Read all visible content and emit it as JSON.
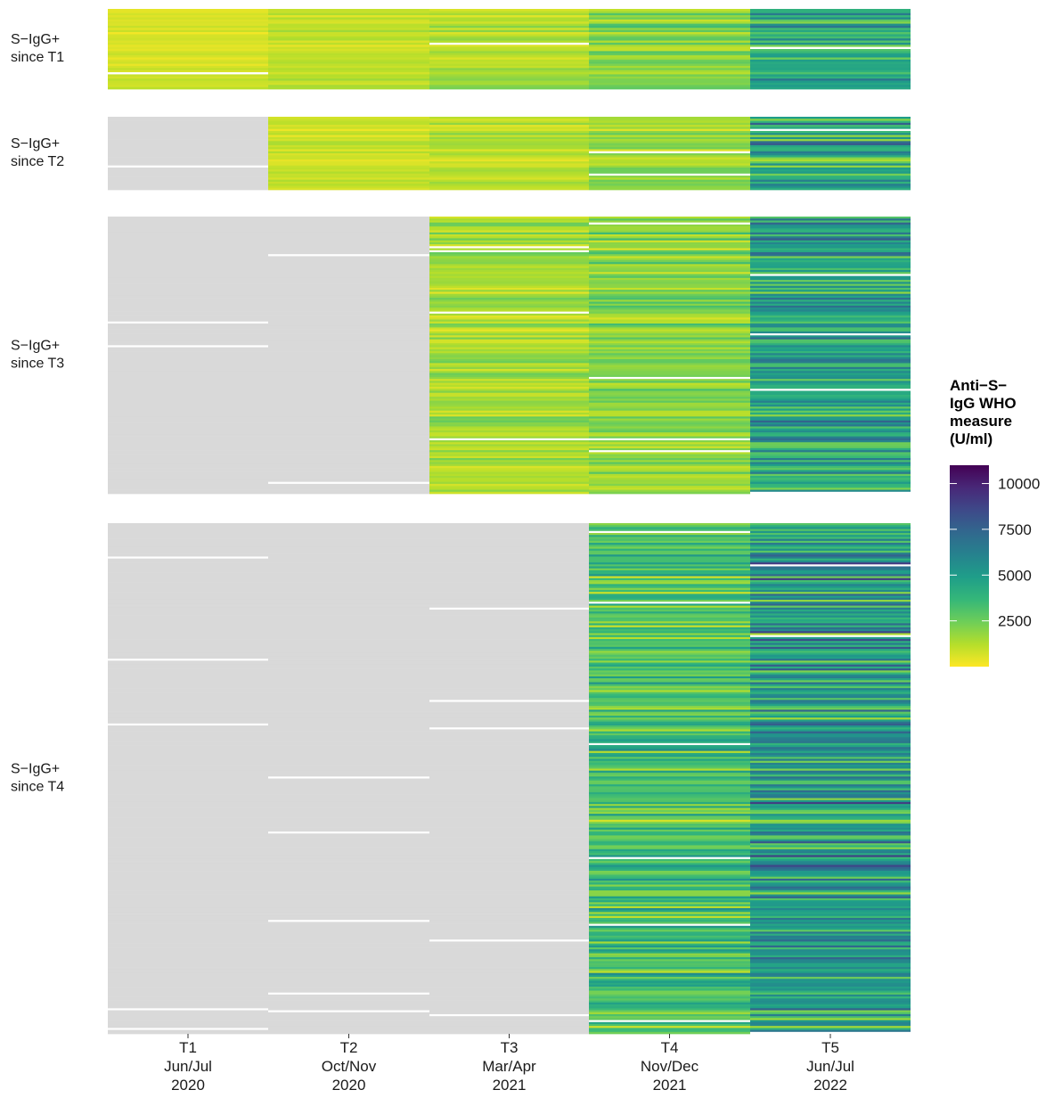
{
  "chart_data": {
    "type": "heatmap",
    "title": "",
    "xlabel": "",
    "ylabel": "",
    "x_categories": [
      {
        "lines": [
          "T1",
          "Jun/Jul",
          "2020"
        ]
      },
      {
        "lines": [
          "T2",
          "Oct/Nov",
          "2020"
        ]
      },
      {
        "lines": [
          "T3",
          "Mar/Apr",
          "2021"
        ]
      },
      {
        "lines": [
          "T4",
          "Nov/Dec",
          "2021"
        ]
      },
      {
        "lines": [
          "T5",
          "Jun/Jul",
          "2022"
        ]
      }
    ],
    "facets": [
      {
        "lines": [
          "S−IgG+",
          "since T1"
        ],
        "rows": 38,
        "first_measured": 0,
        "seed": 11
      },
      {
        "lines": [
          "S−IgG+",
          "since T2"
        ],
        "rows": 36,
        "first_measured": 1,
        "seed": 23
      },
      {
        "lines": [
          "S−IgG+",
          "since T3"
        ],
        "rows": 140,
        "first_measured": 2,
        "seed": 37
      },
      {
        "lines": [
          "S−IgG+",
          "since T4"
        ],
        "rows": 260,
        "first_measured": 3,
        "seed": 53
      }
    ],
    "legend": {
      "title_lines": [
        "Anti−S−",
        "IgG WHO",
        "measure",
        "(U/ml)"
      ],
      "min": 0,
      "max": 11000,
      "breaks": [
        2500,
        5000,
        7500,
        10000
      ],
      "break_labels": [
        "2500",
        "5000",
        "7500",
        "10000"
      ],
      "placement": "right"
    },
    "colorscale": [
      "#fde725",
      "#b5de2b",
      "#6ece58",
      "#35b779",
      "#1f9e89",
      "#26828e",
      "#31688e",
      "#3e4989",
      "#482878",
      "#440154"
    ],
    "missing_colors": {
      "not_yet_positive": "#d9d9d9",
      "no_sample": "#ffffff"
    },
    "approximate_level_by_timepoint": {
      "S−IgG+ since T1": [
        500,
        800,
        1000,
        1600,
        3200
      ],
      "S−IgG+ since T2": [
        null,
        700,
        900,
        1300,
        3600
      ],
      "S−IgG+ since T3": [
        null,
        null,
        1200,
        1600,
        3600
      ],
      "S−IgG+ since T4": [
        null,
        null,
        null,
        2500,
        4000
      ]
    }
  }
}
